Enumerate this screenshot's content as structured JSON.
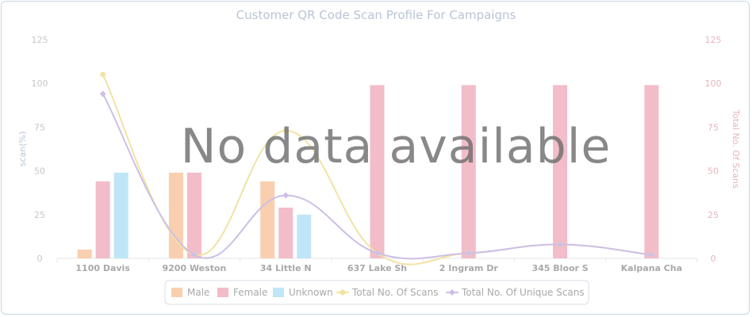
{
  "overlay_message": "No data available",
  "colors": {
    "male": "#f9cfb0",
    "female": "#f2bcc8",
    "unknown": "#bfe6f6",
    "total_scans": "#f2e2a4",
    "unique_scans": "#cdbfe6"
  },
  "chart_data": {
    "type": "bar",
    "title": "Customer QR Code Scan Profile For Campaigns",
    "categories": [
      "1100 Davis",
      "9200 Weston",
      "34 Little N",
      "637 Lake Sh",
      "2 Ingram Dr",
      "345 Bloor S",
      "Kalpana Cha"
    ],
    "ylabel": "scan(%)",
    "ylabel_right": "Total No. Of Scans",
    "ylim": [
      0,
      125
    ],
    "ylim_right": [
      0,
      125
    ],
    "yticks": [
      0,
      25,
      50,
      75,
      100,
      125
    ],
    "grid": false,
    "legend_position": "bottom",
    "series": [
      {
        "name": "Male",
        "type": "bar",
        "axis": "left",
        "values": [
          5,
          49,
          44,
          0,
          0,
          0,
          0
        ]
      },
      {
        "name": "Female",
        "type": "bar",
        "axis": "left",
        "values": [
          44,
          49,
          29,
          99,
          99,
          99,
          99
        ]
      },
      {
        "name": "Unknown",
        "type": "bar",
        "axis": "left",
        "values": [
          49,
          0,
          25,
          0,
          0,
          0,
          0
        ]
      },
      {
        "name": "Total No. Of Scans",
        "type": "line",
        "axis": "right",
        "values": [
          105,
          2,
          73,
          3,
          3,
          8,
          2
        ]
      },
      {
        "name": "Total No. Of Unique Scans",
        "type": "line",
        "axis": "right",
        "values": [
          94,
          2,
          36,
          3,
          3,
          8,
          2
        ]
      }
    ]
  }
}
